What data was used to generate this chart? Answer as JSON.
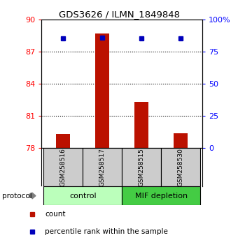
{
  "title": "GDS3626 / ILMN_1849848",
  "samples": [
    "GSM258516",
    "GSM258517",
    "GSM258515",
    "GSM258530"
  ],
  "bar_values": [
    79.3,
    88.7,
    82.3,
    79.4
  ],
  "percentile_values": [
    85.3,
    85.8,
    85.4,
    85.3
  ],
  "bar_color": "#bb1100",
  "percentile_color": "#0000bb",
  "ymin": 78,
  "ymax": 90,
  "yticks_left": [
    78,
    81,
    84,
    87,
    90
  ],
  "yticks_right": [
    0,
    25,
    50,
    75,
    100
  ],
  "ytick_right_labels": [
    "0",
    "25",
    "50",
    "75",
    "100%"
  ],
  "gridlines_at": [
    81,
    84,
    87
  ],
  "groups": [
    {
      "label": "control",
      "indices": [
        0,
        1
      ],
      "color": "#bbffbb"
    },
    {
      "label": "MIF depletion",
      "indices": [
        2,
        3
      ],
      "color": "#44cc44"
    }
  ],
  "protocol_label": "protocol",
  "legend_bar_label": "count",
  "legend_pct_label": "percentile rank within the sample",
  "sample_box_color": "#cccccc"
}
